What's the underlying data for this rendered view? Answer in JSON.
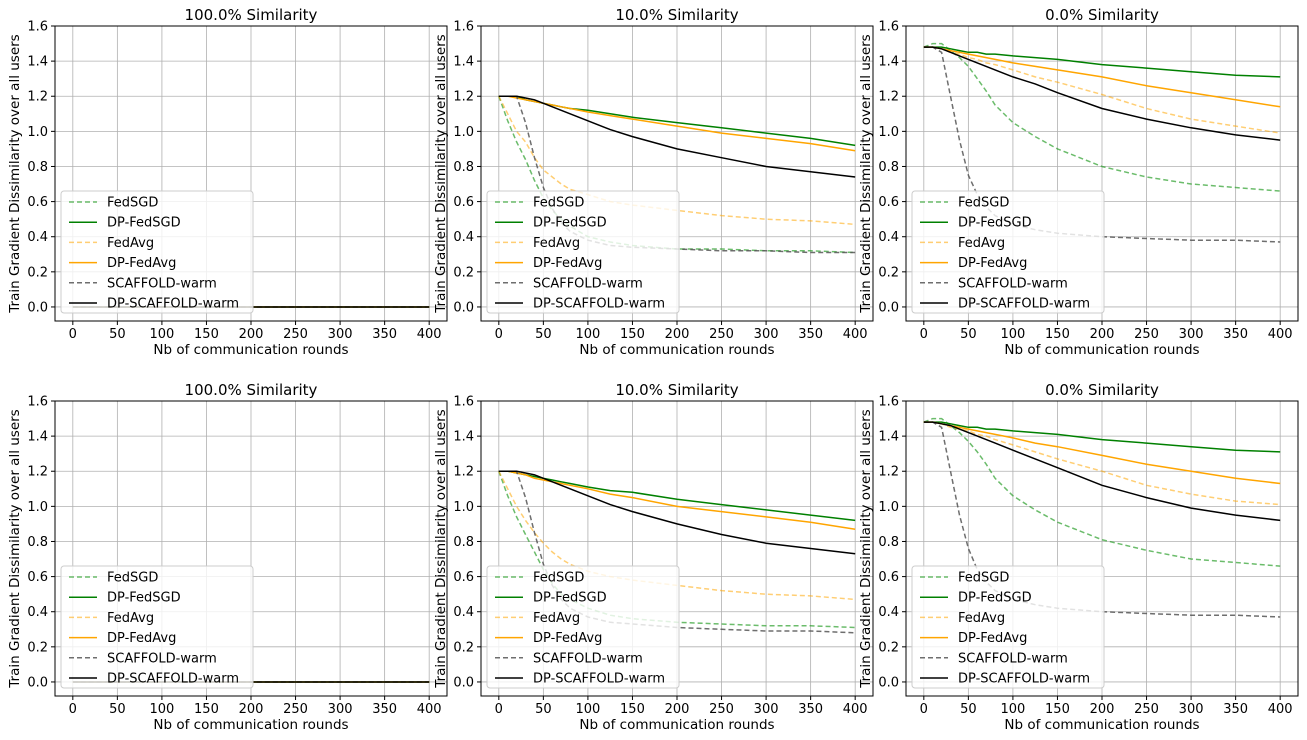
{
  "chart_data": [
    {
      "type": "line",
      "title": "100.0% Similarity",
      "xlabel": "Nb of communication rounds",
      "ylabel": "Train Gradient Dissimilarity over all users",
      "xlim": [
        -20,
        420
      ],
      "ylim": [
        -0.08,
        1.6
      ],
      "xticks": [
        0,
        50,
        100,
        150,
        200,
        250,
        300,
        350,
        400
      ],
      "yticks": [
        0.0,
        0.2,
        0.4,
        0.6,
        0.8,
        1.0,
        1.2,
        1.4,
        1.6
      ],
      "grid": true,
      "legend_position": "lower-left",
      "x": [
        0,
        400
      ],
      "series": [
        {
          "name": "FedSGD",
          "color": "#2ca02c",
          "dashed": true,
          "opacity": 0.7,
          "values": [
            0.0,
            0.0
          ]
        },
        {
          "name": "DP-FedSGD",
          "color": "#008000",
          "dashed": false,
          "opacity": 1,
          "values": [
            0.0,
            0.0
          ]
        },
        {
          "name": "FedAvg",
          "color": "#ffa500",
          "dashed": true,
          "opacity": 0.55,
          "values": [
            0.0,
            0.0
          ]
        },
        {
          "name": "DP-FedAvg",
          "color": "#ffa500",
          "dashed": false,
          "opacity": 1,
          "values": [
            0.0,
            0.0
          ]
        },
        {
          "name": "SCAFFOLD-warm",
          "color": "#555555",
          "dashed": true,
          "opacity": 0.85,
          "values": [
            0.0,
            0.0
          ]
        },
        {
          "name": "DP-SCAFFOLD-warm",
          "color": "#000000",
          "dashed": false,
          "opacity": 1,
          "values": [
            0.0,
            0.0
          ]
        }
      ]
    },
    {
      "type": "line",
      "title": "10.0% Similarity",
      "xlabel": "Nb of communication rounds",
      "ylabel": "Train Gradient Dissimilarity over all users",
      "xlim": [
        -20,
        420
      ],
      "ylim": [
        -0.08,
        1.6
      ],
      "xticks": [
        0,
        50,
        100,
        150,
        200,
        250,
        300,
        350,
        400
      ],
      "yticks": [
        0.0,
        0.2,
        0.4,
        0.6,
        0.8,
        1.0,
        1.2,
        1.4,
        1.6
      ],
      "grid": true,
      "legend_position": "lower-left",
      "x": [
        0,
        10,
        20,
        30,
        40,
        50,
        60,
        70,
        80,
        100,
        125,
        150,
        200,
        250,
        300,
        350,
        400
      ],
      "series": [
        {
          "name": "FedSGD",
          "color": "#2ca02c",
          "dashed": true,
          "opacity": 0.7,
          "values": [
            1.2,
            1.06,
            0.94,
            0.84,
            0.72,
            0.62,
            0.55,
            0.5,
            0.46,
            0.4,
            0.37,
            0.35,
            0.33,
            0.33,
            0.32,
            0.32,
            0.31
          ]
        },
        {
          "name": "DP-FedSGD",
          "color": "#008000",
          "dashed": false,
          "opacity": 1,
          "values": [
            1.2,
            1.2,
            1.2,
            1.18,
            1.17,
            1.16,
            1.15,
            1.14,
            1.13,
            1.12,
            1.1,
            1.08,
            1.05,
            1.02,
            0.99,
            0.96,
            0.92
          ]
        },
        {
          "name": "FedAvg",
          "color": "#ffa500",
          "dashed": true,
          "opacity": 0.55,
          "values": [
            1.2,
            1.1,
            1.0,
            0.94,
            0.85,
            0.78,
            0.74,
            0.7,
            0.67,
            0.64,
            0.6,
            0.58,
            0.55,
            0.52,
            0.5,
            0.49,
            0.47
          ]
        },
        {
          "name": "DP-FedAvg",
          "color": "#ffa500",
          "dashed": false,
          "opacity": 1,
          "values": [
            1.2,
            1.2,
            1.19,
            1.18,
            1.17,
            1.16,
            1.15,
            1.14,
            1.13,
            1.11,
            1.09,
            1.07,
            1.03,
            0.99,
            0.96,
            0.93,
            0.89
          ]
        },
        {
          "name": "SCAFFOLD-warm",
          "color": "#555555",
          "dashed": true,
          "opacity": 0.85,
          "values": [
            1.2,
            1.2,
            1.2,
            1.05,
            0.85,
            0.68,
            0.56,
            0.48,
            0.43,
            0.38,
            0.35,
            0.34,
            0.33,
            0.32,
            0.32,
            0.31,
            0.31
          ]
        },
        {
          "name": "DP-SCAFFOLD-warm",
          "color": "#000000",
          "dashed": false,
          "opacity": 1,
          "values": [
            1.2,
            1.2,
            1.2,
            1.19,
            1.18,
            1.16,
            1.14,
            1.12,
            1.1,
            1.06,
            1.01,
            0.97,
            0.9,
            0.85,
            0.8,
            0.77,
            0.74
          ]
        }
      ]
    },
    {
      "type": "line",
      "title": "0.0% Similarity",
      "xlabel": "Nb of communication rounds",
      "ylabel": "Train Gradient Dissimilarity over all users",
      "xlim": [
        -20,
        420
      ],
      "ylim": [
        -0.08,
        1.6
      ],
      "xticks": [
        0,
        50,
        100,
        150,
        200,
        250,
        300,
        350,
        400
      ],
      "yticks": [
        0.0,
        0.2,
        0.4,
        0.6,
        0.8,
        1.0,
        1.2,
        1.4,
        1.6
      ],
      "grid": true,
      "legend_position": "lower-left",
      "x": [
        0,
        10,
        20,
        30,
        40,
        50,
        60,
        70,
        80,
        100,
        125,
        150,
        200,
        250,
        300,
        350,
        400
      ],
      "series": [
        {
          "name": "FedSGD",
          "color": "#2ca02c",
          "dashed": true,
          "opacity": 0.7,
          "values": [
            1.48,
            1.5,
            1.5,
            1.46,
            1.42,
            1.37,
            1.3,
            1.23,
            1.15,
            1.05,
            0.97,
            0.9,
            0.8,
            0.74,
            0.7,
            0.68,
            0.66
          ]
        },
        {
          "name": "DP-FedSGD",
          "color": "#008000",
          "dashed": false,
          "opacity": 1,
          "values": [
            1.48,
            1.48,
            1.48,
            1.47,
            1.46,
            1.45,
            1.45,
            1.44,
            1.44,
            1.43,
            1.42,
            1.41,
            1.38,
            1.36,
            1.34,
            1.32,
            1.31
          ]
        },
        {
          "name": "FedAvg",
          "color": "#ffa500",
          "dashed": true,
          "opacity": 0.55,
          "values": [
            1.48,
            1.48,
            1.47,
            1.45,
            1.44,
            1.42,
            1.41,
            1.39,
            1.38,
            1.35,
            1.31,
            1.28,
            1.21,
            1.13,
            1.07,
            1.03,
            0.99
          ]
        },
        {
          "name": "DP-FedAvg",
          "color": "#ffa500",
          "dashed": false,
          "opacity": 1,
          "values": [
            1.48,
            1.48,
            1.47,
            1.46,
            1.45,
            1.44,
            1.43,
            1.42,
            1.41,
            1.39,
            1.37,
            1.35,
            1.31,
            1.26,
            1.22,
            1.18,
            1.14
          ]
        },
        {
          "name": "SCAFFOLD-warm",
          "color": "#555555",
          "dashed": true,
          "opacity": 0.85,
          "values": [
            1.48,
            1.48,
            1.45,
            1.2,
            0.95,
            0.75,
            0.64,
            0.57,
            0.52,
            0.47,
            0.44,
            0.42,
            0.4,
            0.39,
            0.38,
            0.38,
            0.37
          ]
        },
        {
          "name": "DP-SCAFFOLD-warm",
          "color": "#000000",
          "dashed": false,
          "opacity": 1,
          "values": [
            1.48,
            1.48,
            1.47,
            1.45,
            1.43,
            1.41,
            1.39,
            1.37,
            1.35,
            1.31,
            1.27,
            1.22,
            1.13,
            1.07,
            1.02,
            0.98,
            0.95
          ]
        }
      ]
    },
    {
      "type": "line",
      "title": "100.0% Similarity",
      "xlabel": "Nb of communication rounds",
      "ylabel": "Train Gradient Dissimilarity over all users",
      "xlim": [
        -20,
        420
      ],
      "ylim": [
        -0.08,
        1.6
      ],
      "xticks": [
        0,
        50,
        100,
        150,
        200,
        250,
        300,
        350,
        400
      ],
      "yticks": [
        0.0,
        0.2,
        0.4,
        0.6,
        0.8,
        1.0,
        1.2,
        1.4,
        1.6
      ],
      "grid": true,
      "legend_position": "lower-left",
      "x": [
        0,
        400
      ],
      "series": [
        {
          "name": "FedSGD",
          "color": "#2ca02c",
          "dashed": true,
          "opacity": 0.7,
          "values": [
            0.0,
            0.0
          ]
        },
        {
          "name": "DP-FedSGD",
          "color": "#008000",
          "dashed": false,
          "opacity": 1,
          "values": [
            0.0,
            0.0
          ]
        },
        {
          "name": "FedAvg",
          "color": "#ffa500",
          "dashed": true,
          "opacity": 0.55,
          "values": [
            0.0,
            0.0
          ]
        },
        {
          "name": "DP-FedAvg",
          "color": "#ffa500",
          "dashed": false,
          "opacity": 1,
          "values": [
            0.0,
            0.0
          ]
        },
        {
          "name": "SCAFFOLD-warm",
          "color": "#555555",
          "dashed": true,
          "opacity": 0.85,
          "values": [
            0.0,
            0.0
          ]
        },
        {
          "name": "DP-SCAFFOLD-warm",
          "color": "#000000",
          "dashed": false,
          "opacity": 1,
          "values": [
            0.0,
            0.0
          ]
        }
      ]
    },
    {
      "type": "line",
      "title": "10.0% Similarity",
      "xlabel": "Nb of communication rounds",
      "ylabel": "Train Gradient Dissimilarity over all users",
      "xlim": [
        -20,
        420
      ],
      "ylim": [
        -0.08,
        1.6
      ],
      "xticks": [
        0,
        50,
        100,
        150,
        200,
        250,
        300,
        350,
        400
      ],
      "yticks": [
        0.0,
        0.2,
        0.4,
        0.6,
        0.8,
        1.0,
        1.2,
        1.4,
        1.6
      ],
      "grid": true,
      "legend_position": "lower-left",
      "x": [
        0,
        10,
        20,
        30,
        40,
        50,
        60,
        70,
        80,
        100,
        125,
        150,
        200,
        250,
        300,
        350,
        400
      ],
      "series": [
        {
          "name": "FedSGD",
          "color": "#2ca02c",
          "dashed": true,
          "opacity": 0.7,
          "values": [
            1.2,
            1.06,
            0.94,
            0.84,
            0.74,
            0.64,
            0.56,
            0.5,
            0.47,
            0.42,
            0.38,
            0.36,
            0.34,
            0.33,
            0.32,
            0.32,
            0.31
          ]
        },
        {
          "name": "DP-FedSGD",
          "color": "#008000",
          "dashed": false,
          "opacity": 1,
          "values": [
            1.2,
            1.2,
            1.19,
            1.18,
            1.17,
            1.16,
            1.15,
            1.14,
            1.13,
            1.11,
            1.09,
            1.08,
            1.04,
            1.01,
            0.98,
            0.95,
            0.92
          ]
        },
        {
          "name": "FedAvg",
          "color": "#ffa500",
          "dashed": true,
          "opacity": 0.55,
          "values": [
            1.2,
            1.1,
            1.0,
            0.92,
            0.85,
            0.79,
            0.74,
            0.7,
            0.67,
            0.63,
            0.6,
            0.58,
            0.55,
            0.52,
            0.5,
            0.49,
            0.47
          ]
        },
        {
          "name": "DP-FedAvg",
          "color": "#ffa500",
          "dashed": false,
          "opacity": 1,
          "values": [
            1.2,
            1.2,
            1.19,
            1.18,
            1.16,
            1.15,
            1.14,
            1.13,
            1.12,
            1.1,
            1.07,
            1.05,
            1.0,
            0.97,
            0.94,
            0.91,
            0.87
          ]
        },
        {
          "name": "SCAFFOLD-warm",
          "color": "#555555",
          "dashed": true,
          "opacity": 0.85,
          "values": [
            1.2,
            1.2,
            1.2,
            1.05,
            0.85,
            0.67,
            0.55,
            0.47,
            0.42,
            0.37,
            0.34,
            0.33,
            0.31,
            0.3,
            0.29,
            0.29,
            0.28
          ]
        },
        {
          "name": "DP-SCAFFOLD-warm",
          "color": "#000000",
          "dashed": false,
          "opacity": 1,
          "values": [
            1.2,
            1.2,
            1.2,
            1.19,
            1.18,
            1.16,
            1.14,
            1.12,
            1.1,
            1.06,
            1.01,
            0.97,
            0.9,
            0.84,
            0.79,
            0.76,
            0.73
          ]
        }
      ]
    },
    {
      "type": "line",
      "title": "0.0% Similarity",
      "xlabel": "Nb of communication rounds",
      "ylabel": "Train Gradient Dissimilarity over all users",
      "xlim": [
        -20,
        420
      ],
      "ylim": [
        -0.08,
        1.6
      ],
      "xticks": [
        0,
        50,
        100,
        150,
        200,
        250,
        300,
        350,
        400
      ],
      "yticks": [
        0.0,
        0.2,
        0.4,
        0.6,
        0.8,
        1.0,
        1.2,
        1.4,
        1.6
      ],
      "grid": true,
      "legend_position": "lower-left",
      "x": [
        0,
        10,
        20,
        30,
        40,
        50,
        60,
        70,
        80,
        100,
        125,
        150,
        200,
        250,
        300,
        350,
        400
      ],
      "series": [
        {
          "name": "FedSGD",
          "color": "#2ca02c",
          "dashed": true,
          "opacity": 0.7,
          "values": [
            1.48,
            1.5,
            1.5,
            1.46,
            1.42,
            1.37,
            1.31,
            1.24,
            1.16,
            1.06,
            0.98,
            0.91,
            0.81,
            0.75,
            0.7,
            0.68,
            0.66
          ]
        },
        {
          "name": "DP-FedSGD",
          "color": "#008000",
          "dashed": false,
          "opacity": 1,
          "values": [
            1.48,
            1.48,
            1.48,
            1.47,
            1.46,
            1.45,
            1.45,
            1.44,
            1.44,
            1.43,
            1.42,
            1.41,
            1.38,
            1.36,
            1.34,
            1.32,
            1.31
          ]
        },
        {
          "name": "FedAvg",
          "color": "#ffa500",
          "dashed": true,
          "opacity": 0.55,
          "values": [
            1.48,
            1.48,
            1.47,
            1.45,
            1.44,
            1.43,
            1.41,
            1.4,
            1.38,
            1.35,
            1.31,
            1.27,
            1.2,
            1.12,
            1.07,
            1.03,
            1.01
          ]
        },
        {
          "name": "DP-FedAvg",
          "color": "#ffa500",
          "dashed": false,
          "opacity": 1,
          "values": [
            1.48,
            1.48,
            1.47,
            1.46,
            1.45,
            1.44,
            1.43,
            1.42,
            1.41,
            1.39,
            1.36,
            1.34,
            1.29,
            1.24,
            1.2,
            1.16,
            1.13
          ]
        },
        {
          "name": "SCAFFOLD-warm",
          "color": "#555555",
          "dashed": true,
          "opacity": 0.85,
          "values": [
            1.48,
            1.48,
            1.45,
            1.2,
            0.95,
            0.76,
            0.64,
            0.57,
            0.52,
            0.47,
            0.44,
            0.42,
            0.4,
            0.39,
            0.38,
            0.38,
            0.37
          ]
        },
        {
          "name": "DP-SCAFFOLD-warm",
          "color": "#000000",
          "dashed": false,
          "opacity": 1,
          "values": [
            1.48,
            1.48,
            1.47,
            1.46,
            1.44,
            1.42,
            1.4,
            1.38,
            1.36,
            1.32,
            1.27,
            1.22,
            1.12,
            1.05,
            0.99,
            0.95,
            0.92
          ]
        }
      ]
    }
  ]
}
